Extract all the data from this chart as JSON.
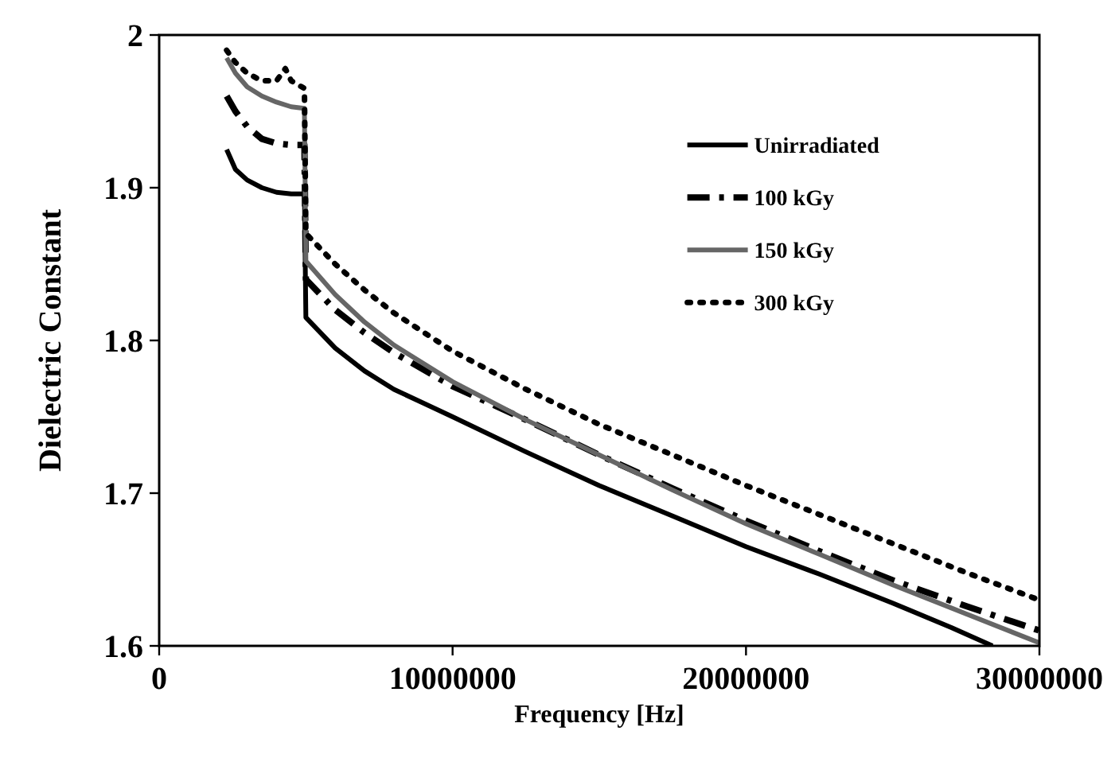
{
  "chart_data": {
    "type": "line",
    "xlabel": "Frequency [Hz]",
    "ylabel": "Dielectric Constant",
    "xlim": [
      0,
      30000000
    ],
    "xticks": [
      0,
      10000000,
      20000000,
      30000000
    ],
    "ylim": [
      1.6,
      2
    ],
    "yticks": [
      {
        "value": 1.6,
        "label": "1.6"
      },
      {
        "value": 1.7,
        "label": "1.7"
      },
      {
        "value": 1.8,
        "label": "1.8"
      },
      {
        "value": 1.9,
        "label": "1.9"
      },
      {
        "value": 2,
        "label": "2"
      }
    ],
    "grid": false,
    "legend": "right",
    "series": [
      {
        "name": "Unirradiated",
        "color": "#000000",
        "line_style": "solid",
        "x": [
          2300000,
          2600000,
          3000000,
          3500000,
          4000000,
          4500000,
          4950000,
          5000000,
          6000000,
          7000000,
          8000000,
          10000000,
          12500000,
          15000000,
          17500000,
          20000000,
          22500000,
          25000000,
          27000000,
          28400000
        ],
        "values": [
          1.925,
          1.912,
          1.905,
          1.9,
          1.897,
          1.896,
          1.896,
          1.815,
          1.795,
          1.78,
          1.768,
          1.75,
          1.727,
          1.705,
          1.685,
          1.665,
          1.647,
          1.628,
          1.612,
          1.6
        ]
      },
      {
        "name": "100 kGy",
        "color": "#000000",
        "line_style": "dashed",
        "x": [
          2300000,
          2600000,
          3000000,
          3500000,
          4000000,
          4500000,
          4950000,
          5000000,
          6000000,
          7000000,
          8000000,
          10000000,
          12500000,
          15000000,
          17500000,
          20000000,
          22500000,
          25000000,
          27500000,
          30000000
        ],
        "values": [
          1.96,
          1.95,
          1.94,
          1.932,
          1.929,
          1.928,
          1.928,
          1.84,
          1.82,
          1.805,
          1.792,
          1.77,
          1.748,
          1.725,
          1.703,
          1.682,
          1.662,
          1.643,
          1.626,
          1.61
        ]
      },
      {
        "name": "150 kGy",
        "color": "#666666",
        "line_style": "solid",
        "x": [
          2300000,
          2600000,
          3000000,
          3500000,
          4000000,
          4500000,
          4950000,
          5000000,
          6000000,
          7000000,
          8000000,
          10000000,
          12500000,
          15000000,
          17500000,
          20000000,
          22500000,
          25000000,
          27500000,
          30000000
        ],
        "values": [
          1.985,
          1.975,
          1.966,
          1.96,
          1.956,
          1.953,
          1.952,
          1.852,
          1.83,
          1.812,
          1.797,
          1.773,
          1.748,
          1.725,
          1.702,
          1.68,
          1.66,
          1.64,
          1.621,
          1.602
        ]
      },
      {
        "name": "300 kGy",
        "color": "#000000",
        "line_style": "dotted",
        "x": [
          2300000,
          2600000,
          3000000,
          3500000,
          4000000,
          4300000,
          4500000,
          4950000,
          5000000,
          6000000,
          7000000,
          8000000,
          10000000,
          12500000,
          15000000,
          17500000,
          20000000,
          22500000,
          25000000,
          27500000,
          30000000
        ],
        "values": [
          1.99,
          1.982,
          1.975,
          1.97,
          1.97,
          1.978,
          1.97,
          1.965,
          1.87,
          1.85,
          1.833,
          1.818,
          1.793,
          1.768,
          1.745,
          1.725,
          1.705,
          1.686,
          1.667,
          1.648,
          1.63
        ]
      }
    ]
  }
}
